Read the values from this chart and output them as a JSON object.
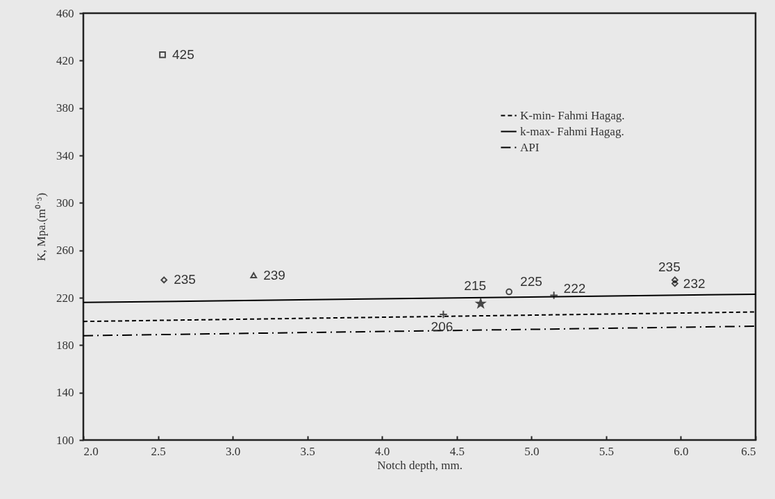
{
  "chart_data": {
    "type": "scatter",
    "xlabel": "Notch depth, mm.",
    "ylabel": "K, Mpa.(m⁰˙⁵)",
    "xlim": [
      2.0,
      6.5
    ],
    "xticks": [
      {
        "value": 2,
        "label": "2.0"
      },
      2.5,
      {
        "value": 3,
        "label": "3.0"
      },
      3.5,
      {
        "value": 4,
        "label": "4.0"
      },
      4.5,
      {
        "value": 5,
        "label": "5.0"
      },
      5.5,
      {
        "value": 6,
        "label": "6.0"
      },
      6.5
    ],
    "ylim": [
      100,
      460
    ],
    "yticks": [
      100,
      140,
      180,
      220,
      260,
      300,
      340,
      380,
      420,
      460
    ],
    "grid": false,
    "legend": "top right",
    "series": [
      {
        "name": "K-min- Fahmi Hagag.",
        "type": "line",
        "color": "#000000",
        "line_style": "dashed",
        "x": [
          2.0,
          6.5
        ],
        "values": [
          200,
          208
        ]
      },
      {
        "name": "k-max- Fahmi Hagag.",
        "type": "line",
        "color": "#000000",
        "line_style": "solid",
        "x": [
          2.0,
          6.5
        ],
        "values": [
          216,
          223
        ]
      },
      {
        "name": "API",
        "type": "line",
        "color": "#000000",
        "line_style": "dashdot",
        "x": [
          2.0,
          6.5
        ],
        "values": [
          188,
          196
        ]
      },
      {
        "color": "#000000",
        "marker": "square",
        "x": [
          2.53
        ],
        "values": [
          425
        ],
        "value_labels": [
          "425"
        ]
      },
      {
        "color": "#000000",
        "marker": "diamond",
        "x": [
          2.54
        ],
        "values": [
          235
        ],
        "value_labels": [
          "235"
        ]
      },
      {
        "color": "#000000",
        "marker": "triangle",
        "x": [
          3.14
        ],
        "values": [
          239
        ],
        "value_labels": [
          "239"
        ]
      },
      {
        "color": "#000000",
        "marker": "cross",
        "x": [
          4.41
        ],
        "values": [
          206
        ],
        "value_labels": [
          "206"
        ]
      },
      {
        "color": "#000000",
        "marker": "star",
        "x": [
          4.66
        ],
        "values": [
          215
        ],
        "value_labels": [
          "215"
        ]
      },
      {
        "color": "#000000",
        "marker": "circle",
        "x": [
          4.85
        ],
        "values": [
          225
        ],
        "value_labels": [
          "225"
        ]
      },
      {
        "color": "#000000",
        "marker": "cross",
        "x": [
          5.15
        ],
        "values": [
          222
        ],
        "value_labels": [
          "222"
        ]
      },
      {
        "color": "#000000",
        "marker": "diamond",
        "x": [
          5.96
        ],
        "values": [
          235
        ],
        "value_labels": [
          "235"
        ]
      },
      {
        "color": "#000000",
        "marker": "diamond",
        "x": [
          5.96
        ],
        "values": [
          232
        ],
        "value_labels": [
          "232"
        ]
      }
    ]
  }
}
